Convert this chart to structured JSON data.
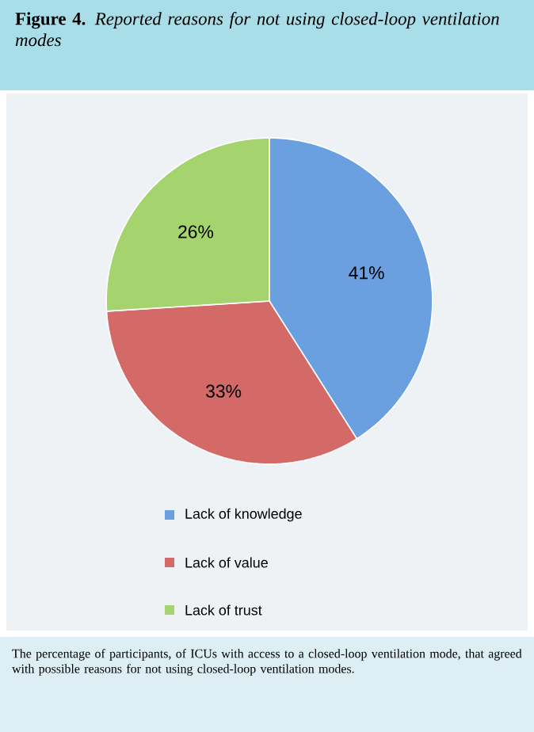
{
  "chart_data": {
    "type": "pie",
    "title": "**Figure 4.** *Reported reasons for not using closed-loop ventilation modes*",
    "categories": [
      "Lack of knowledge",
      "Lack of value",
      "Lack of trust"
    ],
    "values": [
      41,
      33,
      26
    ],
    "colors": [
      "#6a9fe0",
      "#d46a68",
      "#a5d46e"
    ],
    "value_labels": [
      "41%",
      "33%",
      "26%"
    ],
    "legend": "bottom",
    "annotations": [
      "The percentage of participants, of ICUs with access to a closed-loop ventilation mode, that agreed with possible reasons for not using closed-loop ventilation modes."
    ]
  }
}
